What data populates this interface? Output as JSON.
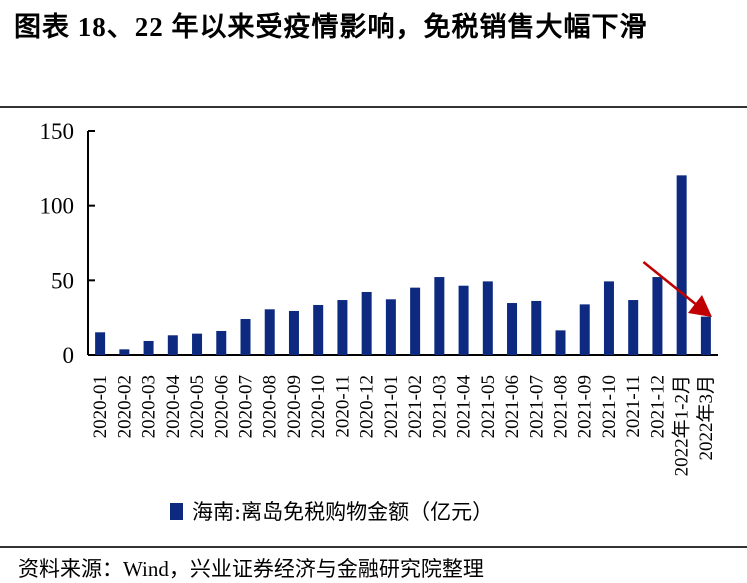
{
  "title": "图表 18、22 年以来受疫情影响，免税销售大幅下滑",
  "source": "资料来源：Wind，兴业证券经济与金融研究院整理",
  "colors": {
    "bar": "#0d2a80",
    "arrow": "#c00000"
  },
  "chart_data": {
    "type": "bar",
    "title": "图表 18、22 年以来受疫情影响，免税销售大幅下滑",
    "xlabel": "",
    "ylabel": "",
    "ylim": [
      0,
      150
    ],
    "yticks": [
      0,
      50,
      100,
      150
    ],
    "grid": false,
    "legend_position": "bottom",
    "categories": [
      "2020-01",
      "2020-02",
      "2020-03",
      "2020-04",
      "2020-05",
      "2020-06",
      "2020-07",
      "2020-08",
      "2020-09",
      "2020-10",
      "2020-11",
      "2020-12",
      "2021-01",
      "2021-02",
      "2021-03",
      "2021-04",
      "2021-05",
      "2021-06",
      "2021-07",
      "2021-08",
      "2021-09",
      "2021-10",
      "2021-11",
      "2021-12",
      "2022年1-2月",
      "2022年3月"
    ],
    "series": [
      {
        "name": "海南:离岛免税购物金额（亿元）",
        "values": [
          15.2,
          3.8,
          9.4,
          13.2,
          14.3,
          16.1,
          24.1,
          30.6,
          29.5,
          33.5,
          36.8,
          42.2,
          37.3,
          45.1,
          52.2,
          46.4,
          49.3,
          34.8,
          36.2,
          16.5,
          33.9,
          49.3,
          36.8,
          52.2,
          120.3,
          25.7
        ]
      }
    ],
    "annotations": [
      {
        "type": "arrow",
        "from_category": "2021-12",
        "to_category": "2022年3月",
        "meaning": "decline"
      }
    ]
  }
}
